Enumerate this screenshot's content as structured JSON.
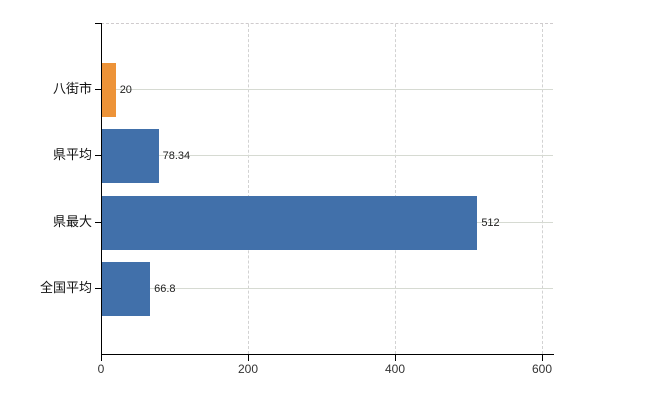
{
  "chart_data": {
    "type": "bar",
    "orientation": "horizontal",
    "title": "",
    "xlabel": "",
    "ylabel": "",
    "categories": [
      "八街市",
      "県平均",
      "県最大",
      "全国平均"
    ],
    "values": [
      20,
      78.34,
      512,
      66.8
    ],
    "value_labels": [
      "20",
      "78.34",
      "512",
      "66.8"
    ],
    "bar_colors": [
      "#ed9338",
      "#4170aa",
      "#4170aa",
      "#4170aa"
    ],
    "x_ticks": [
      0,
      200,
      400,
      600
    ],
    "x_tick_labels": [
      "0",
      "200",
      "400",
      "600"
    ],
    "xlim": [
      0,
      615
    ],
    "grid": true,
    "gridline_vertical_ticks": [
      200,
      400,
      600
    ],
    "legend": null
  },
  "colors": {
    "bar_blue": "#4170aa",
    "bar_orange": "#ed9338",
    "gridline_horizontal": "#d6dad2",
    "gridline_vertical": "#d2d2d2",
    "plot_border_dashed": "#cfcbcd",
    "axis": "#000000",
    "tick_label_text": "#333333",
    "value_label_text": "#222222",
    "background": "#ffffff"
  }
}
